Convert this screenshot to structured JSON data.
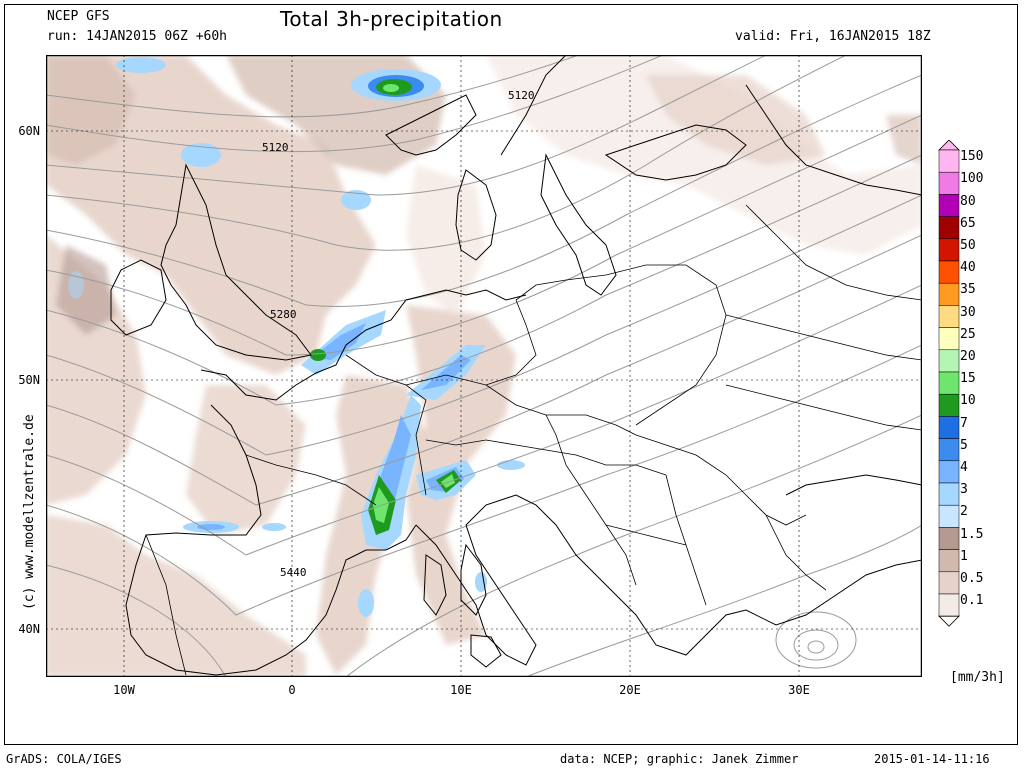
{
  "header": {
    "model": "NCEP GFS",
    "run": "run: 14JAN2015 06Z +60h",
    "title": "Total 3h-precipitation",
    "valid": "valid: Fri, 16JAN2015 18Z"
  },
  "axes": {
    "lat_labels": [
      "60N",
      "50N",
      "40N"
    ],
    "lon_labels": [
      "10W",
      "0",
      "10E",
      "20E",
      "30E"
    ]
  },
  "contour_labels": [
    "5120",
    "5120",
    "5280",
    "5440"
  ],
  "colorbar": {
    "unit": "[mm/3h]",
    "levels": [
      "150",
      "100",
      "80",
      "65",
      "50",
      "40",
      "35",
      "30",
      "25",
      "20",
      "15",
      "10",
      "7",
      "5",
      "4",
      "3",
      "2",
      "1.5",
      "1",
      "0.5",
      "0.1"
    ],
    "colors": [
      "#ffb6f0",
      "#f07be6",
      "#b400b4",
      "#a00000",
      "#d21400",
      "#ff5000",
      "#ff9b1e",
      "#ffdc82",
      "#ffffbe",
      "#b4f5b4",
      "#6ee66e",
      "#1e9b1e",
      "#1e6ee6",
      "#3c8cf0",
      "#78b4ff",
      "#a5d7ff",
      "#c8e6ff",
      "#b49a91",
      "#d2b9ad",
      "#e6d2c8",
      "#f5ebe6"
    ]
  },
  "footer": {
    "grads": "GrADS: COLA/IGES",
    "data_credit": "data: NCEP; graphic: Janek Zimmer",
    "timestamp": "2015-01-14-11:16"
  },
  "side_credit": "(c) www.modellzentrale.de"
}
